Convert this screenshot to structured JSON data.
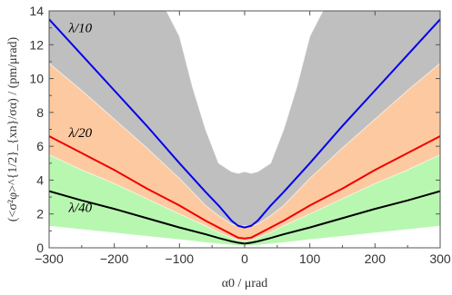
{
  "chart_data": {
    "type": "line",
    "xlabel": "α0 / μrad",
    "ylabel": "(<σ²φ>^{1/2}_{xn}/σα)  /  (pm/μrad)",
    "xlim": [
      -300,
      300
    ],
    "ylim": [
      0,
      14
    ],
    "xticks": [
      -300,
      -200,
      -100,
      0,
      100,
      200,
      300
    ],
    "xtick_labels": [
      "−300",
      "−200",
      "−100",
      "0",
      "100",
      "200",
      "300"
    ],
    "yticks": [
      0,
      2,
      4,
      6,
      8,
      10,
      12,
      14
    ],
    "grid": false,
    "series": [
      {
        "name": "λ/10",
        "color": "#0000ee",
        "x": [
          -300,
          -250,
          -200,
          -150,
          -100,
          -60,
          -40,
          -20,
          -10,
          0,
          10,
          20,
          40,
          60,
          100,
          150,
          200,
          250,
          300
        ],
        "values": [
          13.5,
          11.4,
          9.3,
          7.2,
          5.0,
          3.3,
          2.5,
          1.6,
          1.3,
          1.2,
          1.3,
          1.6,
          2.5,
          3.3,
          5.0,
          7.2,
          9.3,
          11.4,
          13.5
        ]
      },
      {
        "name": "λ/20",
        "color": "#ee0000",
        "x": [
          -300,
          -250,
          -200,
          -150,
          -100,
          -60,
          -40,
          -20,
          -10,
          0,
          10,
          20,
          40,
          60,
          100,
          150,
          200,
          250,
          300
        ],
        "values": [
          6.6,
          5.6,
          4.6,
          3.5,
          2.5,
          1.6,
          1.2,
          0.8,
          0.6,
          0.55,
          0.6,
          0.8,
          1.2,
          1.6,
          2.5,
          3.5,
          4.6,
          5.6,
          6.6
        ]
      },
      {
        "name": "λ/40",
        "color": "#000000",
        "x": [
          -300,
          -250,
          -200,
          -150,
          -100,
          -60,
          -40,
          -20,
          -10,
          0,
          10,
          20,
          40,
          60,
          100,
          150,
          200,
          250,
          300
        ],
        "values": [
          3.35,
          2.8,
          2.3,
          1.75,
          1.2,
          0.8,
          0.58,
          0.38,
          0.3,
          0.25,
          0.3,
          0.38,
          0.58,
          0.8,
          1.2,
          1.75,
          2.3,
          2.8,
          3.35
        ]
      }
    ],
    "bands": [
      {
        "color": "#bfbfbf",
        "x": [
          -300,
          -250,
          -200,
          -150,
          -120,
          -100,
          -80,
          -60,
          -40,
          -20,
          -10,
          0,
          10,
          20,
          40,
          60,
          80,
          100,
          120,
          150,
          200,
          250,
          300
        ],
        "upper": [
          14,
          14,
          14,
          14,
          14,
          12.5,
          9.5,
          7.0,
          5.0,
          4.5,
          4.4,
          4.5,
          4.4,
          4.5,
          5.0,
          7.0,
          9.5,
          12.5,
          14,
          14,
          14,
          14,
          14
        ],
        "lower": [
          10.9,
          9.3,
          7.6,
          5.9,
          4.8,
          4.1,
          3.3,
          2.5,
          1.9,
          1.4,
          1.3,
          1.3,
          1.3,
          1.4,
          1.9,
          2.5,
          3.3,
          4.1,
          4.8,
          5.9,
          7.6,
          9.3,
          10.9
        ]
      },
      {
        "color": "#fdc9a0",
        "x": [
          -300,
          -250,
          -200,
          -150,
          -100,
          -60,
          -40,
          -20,
          -10,
          0,
          10,
          20,
          40,
          60,
          100,
          150,
          200,
          250,
          300
        ],
        "upper": [
          10.9,
          9.3,
          7.6,
          5.9,
          4.1,
          2.5,
          1.9,
          1.4,
          1.3,
          1.3,
          1.3,
          1.4,
          1.9,
          2.5,
          4.1,
          5.9,
          7.6,
          9.3,
          10.9
        ],
        "lower": [
          5.5,
          4.6,
          3.8,
          2.9,
          2.0,
          1.3,
          0.9,
          0.6,
          0.45,
          0.4,
          0.45,
          0.6,
          0.9,
          1.3,
          2.0,
          2.9,
          3.8,
          4.6,
          5.5
        ]
      },
      {
        "color": "#b8f7b0",
        "x": [
          -300,
          -250,
          -200,
          -150,
          -100,
          -60,
          -40,
          -20,
          -10,
          0,
          10,
          20,
          40,
          60,
          100,
          150,
          200,
          250,
          300
        ],
        "upper": [
          5.5,
          4.6,
          3.8,
          2.9,
          2.0,
          1.3,
          0.9,
          0.6,
          0.45,
          0.4,
          0.45,
          0.6,
          0.9,
          1.3,
          2.0,
          2.9,
          3.8,
          4.6,
          5.5
        ],
        "lower": [
          1.3,
          1.1,
          0.9,
          0.7,
          0.5,
          0.33,
          0.25,
          0.18,
          0.15,
          0.15,
          0.15,
          0.18,
          0.25,
          0.33,
          0.5,
          0.7,
          0.9,
          1.1,
          1.3
        ]
      }
    ],
    "annotations": [
      {
        "text": "λ/10",
        "x": -270,
        "y": 13.0
      },
      {
        "text": "λ/20",
        "x": -270,
        "y": 6.8
      },
      {
        "text": "λ/40",
        "x": -270,
        "y": 2.4
      }
    ]
  }
}
